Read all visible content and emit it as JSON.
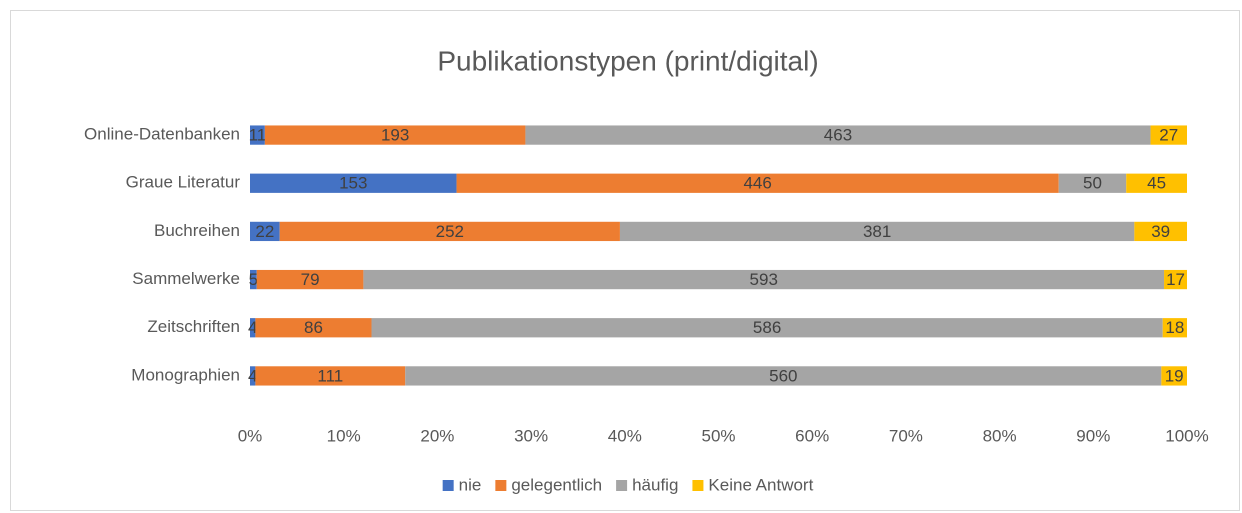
{
  "chart_data": {
    "type": "bar",
    "orientation": "horizontal",
    "stacking": "percent",
    "title": "Publikationstypen (print/digital)",
    "categories": [
      "Online-Datenbanken",
      "Graue Literatur",
      "Buchreihen",
      "Sammelwerke",
      "Zeitschriften",
      "Monographien"
    ],
    "series": [
      {
        "name": "nie",
        "color": "#4472c4",
        "values": [
          11,
          153,
          22,
          5,
          4,
          4
        ]
      },
      {
        "name": "gelegentlich",
        "color": "#ed7d31",
        "values": [
          193,
          446,
          252,
          79,
          86,
          111
        ]
      },
      {
        "name": "häufig",
        "color": "#a5a5a5",
        "values": [
          463,
          50,
          381,
          593,
          586,
          560
        ]
      },
      {
        "name": "Keine Antwort",
        "color": "#ffc000",
        "values": [
          27,
          45,
          39,
          17,
          18,
          19
        ]
      }
    ],
    "xlim": [
      0,
      100
    ],
    "xticks": [
      {
        "value": 0,
        "label": "0%"
      },
      {
        "value": 10,
        "label": "10%"
      },
      {
        "value": 20,
        "label": "20%"
      },
      {
        "value": 30,
        "label": "30%"
      },
      {
        "value": 40,
        "label": "40%"
      },
      {
        "value": 50,
        "label": "50%"
      },
      {
        "value": 60,
        "label": "60%"
      },
      {
        "value": 70,
        "label": "70%"
      },
      {
        "value": 80,
        "label": "80%"
      },
      {
        "value": 90,
        "label": "90%"
      },
      {
        "value": 100,
        "label": "100%"
      }
    ],
    "legend": "bottom"
  }
}
